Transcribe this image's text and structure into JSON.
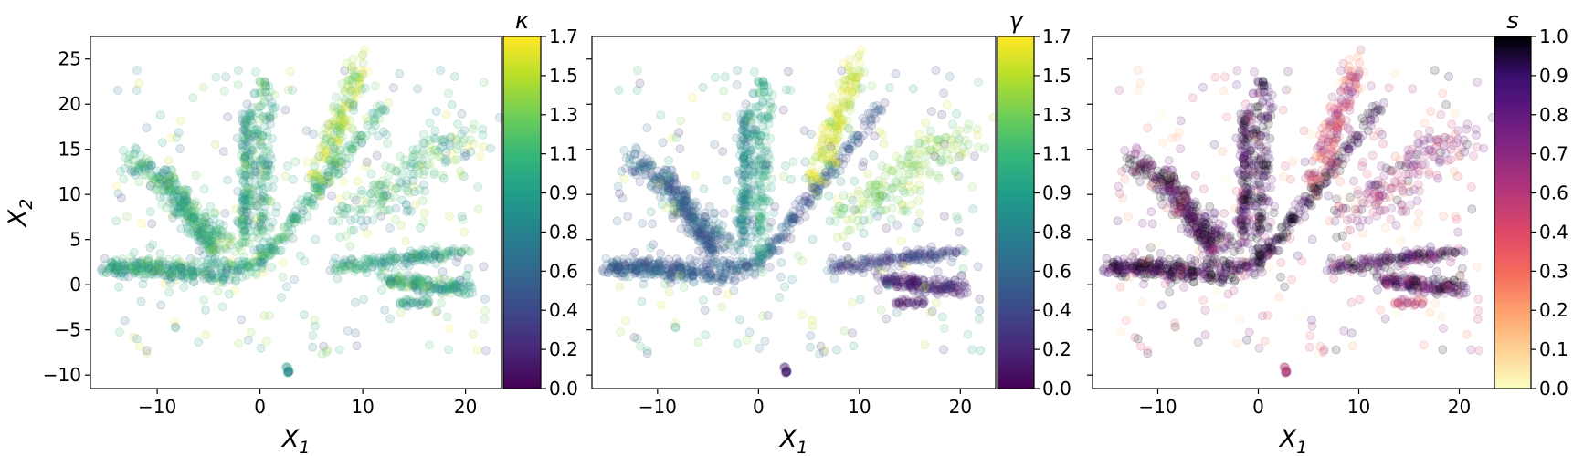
{
  "chart_data": [
    {
      "type": "scatter",
      "xlabel": "X",
      "xlabel_sub": "1",
      "ylabel": "X",
      "ylabel_sub": "2",
      "xlim": [
        -16.5,
        23.5
      ],
      "ylim": [
        -11.5,
        27.5
      ],
      "xticks": [
        -10,
        0,
        10,
        20
      ],
      "yticks": [
        -10,
        -5,
        0,
        5,
        10,
        15,
        20,
        25
      ],
      "xtick_labels": [
        "−10",
        "0",
        "10",
        "20"
      ],
      "ytick_labels": [
        "−10",
        "−5",
        "0",
        "5",
        "10",
        "15",
        "20",
        "25"
      ],
      "show_ytick_labels": true,
      "grid": false,
      "colormap": "viridis",
      "colorbar": {
        "title": "κ",
        "ticks": [
          "0.0",
          "0.2",
          "0.4",
          "0.6",
          "0.8",
          "0.9",
          "1.1",
          "1.3",
          "1.5",
          "1.7"
        ]
      },
      "point_alpha": 0.15
    },
    {
      "type": "scatter",
      "xlabel": "X",
      "xlabel_sub": "1",
      "ylabel": "",
      "ylabel_sub": "",
      "xlim": [
        -16.5,
        23.5
      ],
      "ylim": [
        -11.5,
        27.5
      ],
      "xticks": [
        -10,
        0,
        10,
        20
      ],
      "yticks": [
        -10,
        -5,
        0,
        5,
        10,
        15,
        20,
        25
      ],
      "xtick_labels": [
        "−10",
        "0",
        "10",
        "20"
      ],
      "ytick_labels": [],
      "show_ytick_labels": false,
      "grid": false,
      "colormap": "viridis",
      "colorbar": {
        "title": "γ",
        "ticks": [
          "0.0",
          "0.2",
          "0.4",
          "0.6",
          "0.8",
          "0.9",
          "1.1",
          "1.3",
          "1.5",
          "1.7"
        ]
      },
      "point_alpha": 0.15
    },
    {
      "type": "scatter",
      "xlabel": "X",
      "xlabel_sub": "1",
      "ylabel": "",
      "ylabel_sub": "",
      "xlim": [
        -16.5,
        23.5
      ],
      "ylim": [
        -11.5,
        27.5
      ],
      "xticks": [
        -10,
        0,
        10,
        20
      ],
      "yticks": [
        -10,
        -5,
        0,
        5,
        10,
        15,
        20,
        25
      ],
      "xtick_labels": [
        "−10",
        "0",
        "10",
        "20"
      ],
      "ytick_labels": [],
      "show_ytick_labels": false,
      "grid": false,
      "colormap": "magma_r",
      "colorbar": {
        "title": "s",
        "ticks": [
          "0.0",
          "0.1",
          "0.2",
          "0.3",
          "0.4",
          "0.6",
          "0.7",
          "0.8",
          "0.9",
          "1.0"
        ]
      },
      "point_alpha": 0.15
    }
  ],
  "clusters": [
    {
      "id": "v-stem-left",
      "x0": -14.5,
      "y0": 2.0,
      "x1": 0.2,
      "y1": 2.2,
      "width": 1.4,
      "kappa": 1.0,
      "gamma": 0.5,
      "s": 0.9
    },
    {
      "id": "v-arm-right",
      "x0": 0.0,
      "y0": 2.3,
      "x1": 12.3,
      "y1": 20.0,
      "width": 0.9,
      "kappa": 1.05,
      "gamma": 0.45,
      "s": 0.95
    },
    {
      "id": "vertical-left",
      "x0": -1.5,
      "y0": 4.0,
      "x1": -1.3,
      "y1": 19.0,
      "width": 0.9,
      "kappa": 1.0,
      "gamma": 0.8,
      "s": 0.9
    },
    {
      "id": "vertical-center",
      "x0": 0.3,
      "y0": 2.5,
      "x1": 0.3,
      "y1": 23.5,
      "width": 1.4,
      "kappa": 1.05,
      "gamma": 1.0,
      "s": 0.95
    },
    {
      "id": "left-diagonal",
      "x0": -3.0,
      "y0": 4.5,
      "x1": -12.5,
      "y1": 14.0,
      "width": 2.0,
      "kappa": 1.1,
      "gamma": 0.55,
      "s": 0.9
    },
    {
      "id": "left-diagonal-2",
      "x0": -4.5,
      "y0": 3.5,
      "x1": -9.5,
      "y1": 12.5,
      "width": 1.2,
      "kappa": 1.0,
      "gamma": 0.5,
      "s": 0.85
    },
    {
      "id": "bottom-left-band",
      "x0": -15.0,
      "y0": 2.0,
      "x1": -2.5,
      "y1": 0.8,
      "width": 1.3,
      "kappa": 0.95,
      "gamma": 0.5,
      "s": 0.95
    },
    {
      "id": "upper-right-streak",
      "x0": 5.5,
      "y0": 11.0,
      "x1": 10.0,
      "y1": 25.0,
      "width": 1.6,
      "kappa": 1.45,
      "gamma": 1.6,
      "s": 0.45
    },
    {
      "id": "right-fan",
      "x0": 8.5,
      "y0": 7.0,
      "x1": 20.0,
      "y1": 17.0,
      "width": 3.6,
      "kappa": 1.1,
      "gamma": 1.35,
      "s": 0.65
    },
    {
      "id": "right-lower-band",
      "x0": 7.0,
      "y0": 2.0,
      "x1": 19.5,
      "y1": 3.5,
      "width": 1.2,
      "kappa": 0.95,
      "gamma": 0.35,
      "s": 0.85
    },
    {
      "id": "right-bottom-band",
      "x0": 12.0,
      "y0": 0.5,
      "x1": 20.5,
      "y1": -0.5,
      "width": 1.3,
      "kappa": 1.0,
      "gamma": 0.15,
      "s": 0.85
    },
    {
      "id": "small-dark-patch",
      "x0": 13.5,
      "y0": -2.0,
      "x1": 16.5,
      "y1": -2.0,
      "width": 0.5,
      "kappa": 0.9,
      "gamma": 0.05,
      "s": 0.55
    },
    {
      "id": "bottom-outlier",
      "x0": 2.6,
      "y0": -9.0,
      "x1": 2.8,
      "y1": -9.8,
      "width": 0.2,
      "kappa": 0.9,
      "gamma": 0.1,
      "s": 0.6
    }
  ]
}
